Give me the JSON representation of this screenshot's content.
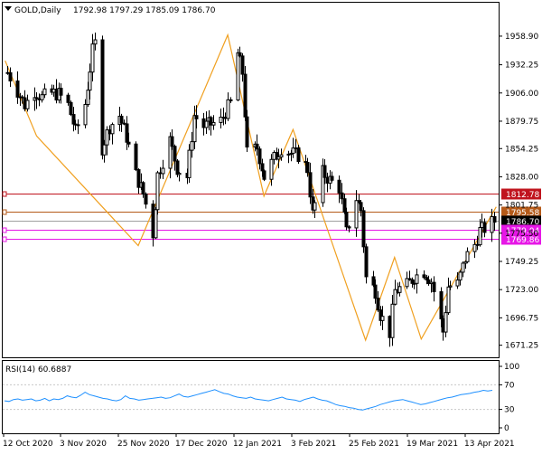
{
  "header": {
    "symbol_label": "GOLD,Daily",
    "ohlc": "1792.98 1797.29 1785.09 1786.70"
  },
  "rsi_header": {
    "label": "RSI(14) 60.6887"
  },
  "colors": {
    "background": "#ffffff",
    "candle": "#000000",
    "zigzag": "#f0a020",
    "level_red": "#c0141e",
    "level_orange": "#b55a19",
    "level_magenta": "#e617e6",
    "level_gray": "#a0a0a0",
    "price_tag_dark": "#000000",
    "rsi_line": "#1e90ff"
  },
  "chart_data": [
    {
      "type": "candlestick",
      "title": "GOLD,Daily",
      "ylim": [
        1660,
        1990
      ],
      "y_ticks": [
        1958.9,
        1932.25,
        1906.0,
        1879.75,
        1854.25,
        1828.0,
        1801.75,
        1775.5,
        1749.25,
        1723.0,
        1696.75,
        1671.25
      ],
      "x_ticks": [
        "12 Oct 2020",
        "3 Nov 2020",
        "25 Nov 2020",
        "17 Dec 2020",
        "12 Jan 2021",
        "3 Feb 2021",
        "25 Feb 2021",
        "19 Mar 2021",
        "13 Apr 2021"
      ],
      "close_path": [
        [
          "2020-10-01",
          1925
        ],
        [
          "2020-10-05",
          1908
        ],
        [
          "2020-10-08",
          1895
        ],
        [
          "2020-10-12",
          1908
        ],
        [
          "2020-10-15",
          1902
        ],
        [
          "2020-10-19",
          1906
        ],
        [
          "2020-10-22",
          1905
        ],
        [
          "2020-10-26",
          1895
        ],
        [
          "2020-10-29",
          1870
        ],
        [
          "2020-11-02",
          1896
        ],
        [
          "2020-11-05",
          1945
        ],
        [
          "2020-11-06",
          1952
        ],
        [
          "2020-11-09",
          1855
        ],
        [
          "2020-11-12",
          1875
        ],
        [
          "2020-11-16",
          1885
        ],
        [
          "2020-11-19",
          1865
        ],
        [
          "2020-11-23",
          1830
        ],
        [
          "2020-11-26",
          1812
        ],
        [
          "2020-11-30",
          1775
        ],
        [
          "2020-12-02",
          1830
        ],
        [
          "2020-12-07",
          1862
        ],
        [
          "2020-12-10",
          1836
        ],
        [
          "2020-12-14",
          1828
        ],
        [
          "2020-12-17",
          1885
        ],
        [
          "2020-12-21",
          1875
        ],
        [
          "2020-12-24",
          1877
        ],
        [
          "2020-12-28",
          1880
        ],
        [
          "2021-01-01",
          1897
        ],
        [
          "2021-01-04",
          1943
        ],
        [
          "2021-01-06",
          1925
        ],
        [
          "2021-01-08",
          1850
        ],
        [
          "2021-01-12",
          1855
        ],
        [
          "2021-01-15",
          1828
        ],
        [
          "2021-01-19",
          1845
        ],
        [
          "2021-01-22",
          1855
        ],
        [
          "2021-01-26",
          1850
        ],
        [
          "2021-01-29",
          1848
        ],
        [
          "2021-02-02",
          1835
        ],
        [
          "2021-02-04",
          1793
        ],
        [
          "2021-02-08",
          1832
        ],
        [
          "2021-02-11",
          1825
        ],
        [
          "2021-02-15",
          1818
        ],
        [
          "2021-02-18",
          1776
        ],
        [
          "2021-02-22",
          1808
        ],
        [
          "2021-02-24",
          1797
        ],
        [
          "2021-02-26",
          1734
        ],
        [
          "2021-03-02",
          1722
        ],
        [
          "2021-03-04",
          1700
        ],
        [
          "2021-03-08",
          1683
        ],
        [
          "2021-03-10",
          1722
        ],
        [
          "2021-03-15",
          1727
        ],
        [
          "2021-03-18",
          1735
        ],
        [
          "2021-03-22",
          1740
        ],
        [
          "2021-03-25",
          1731
        ],
        [
          "2021-03-30",
          1684
        ],
        [
          "2021-04-01",
          1726
        ],
        [
          "2021-04-05",
          1728
        ],
        [
          "2021-04-08",
          1752
        ],
        [
          "2021-04-12",
          1765
        ],
        [
          "2021-04-14",
          1778
        ],
        [
          "2021-04-16",
          1780
        ],
        [
          "2021-04-20",
          1787
        ]
      ],
      "zigzag": [
        [
          "2020-09-30",
          1936
        ],
        [
          "2020-10-13",
          1866
        ],
        [
          "2020-11-24",
          1764
        ],
        [
          "2020-12-31",
          1960
        ],
        [
          "2021-01-15",
          1810
        ],
        [
          "2021-01-27",
          1872
        ],
        [
          "2021-02-26",
          1676
        ],
        [
          "2021-03-10",
          1753
        ],
        [
          "2021-03-21",
          1677
        ],
        [
          "2021-04-21",
          1800
        ]
      ],
      "levels": [
        {
          "price": 1812.78,
          "label": "1812.78",
          "color": "level_red"
        },
        {
          "price": 1795.58,
          "label": "1795.58",
          "color": "level_orange"
        },
        {
          "price": 1786.7,
          "label": "1786.70",
          "color": "price_tag_dark",
          "current": true
        },
        {
          "price": 1779.04,
          "label": "1779.04",
          "color": "level_magenta"
        },
        {
          "price": 1769.86,
          "label": "1769.86",
          "color": "level_magenta"
        }
      ]
    },
    {
      "type": "line",
      "title": "RSI(14) 60.6887",
      "ylim": [
        0,
        100
      ],
      "y_ticks": [
        "100",
        "70",
        "30",
        "0"
      ],
      "y_tick_values": [
        100,
        70,
        30,
        0
      ],
      "series": [
        {
          "values": [
            44,
            43,
            46,
            47,
            45,
            46,
            47,
            44,
            45,
            48,
            44,
            47,
            46,
            48,
            52,
            50,
            49,
            53,
            58,
            54,
            52,
            50,
            48,
            47,
            45,
            44,
            46,
            52,
            48,
            47,
            45,
            46,
            47,
            48,
            49,
            50,
            48,
            49,
            52,
            55,
            51,
            50,
            52,
            54,
            56,
            58,
            60,
            62,
            59,
            56,
            55,
            52,
            50,
            49,
            48,
            50,
            47,
            46,
            45,
            44,
            46,
            48,
            50,
            47,
            46,
            45,
            43,
            46,
            48,
            50,
            47,
            45,
            44,
            41,
            38,
            36,
            35,
            33,
            32,
            30,
            29,
            31,
            33,
            35,
            38,
            40,
            42,
            44,
            45,
            46,
            44,
            42,
            40,
            38,
            39,
            41,
            43,
            45,
            47,
            49,
            50,
            52,
            54,
            55,
            56,
            58,
            59,
            61,
            60,
            61
          ]
        }
      ]
    }
  ]
}
